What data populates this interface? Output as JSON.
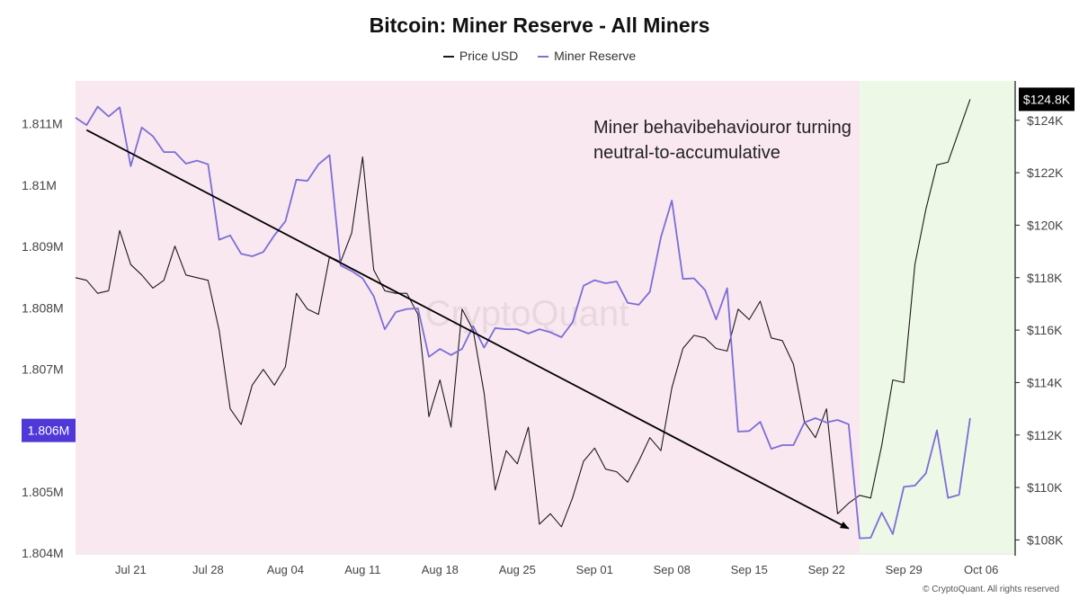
{
  "chart_data": {
    "type": "line",
    "title": "Bitcoin: Miner Reserve - All Miners",
    "legend": [
      "Price USD",
      "Miner Reserve"
    ],
    "legend_position": "top-center",
    "annotation": "Miner behavibehaviouror turning neutral-to-accumulative",
    "watermark": "CryptoQuant",
    "copyright": "© CryptoQuant. All rights reserved",
    "x_ticks": [
      "Jul 21",
      "Jul 28",
      "Aug 04",
      "Aug 11",
      "Aug 18",
      "Aug 25",
      "Sep 01",
      "Sep 08",
      "Sep 15",
      "Sep 22",
      "Sep 29",
      "Oct 06"
    ],
    "y_left_ticks": [
      "1.811M",
      "1.81M",
      "1.809M",
      "1.808M",
      "1.807M",
      "1.806M",
      "1.805M",
      "1.804M"
    ],
    "y_left_values": [
      1.811,
      1.81,
      1.809,
      1.808,
      1.807,
      1.806,
      1.805,
      1.804
    ],
    "y_left_range": [
      1.804,
      1.8117
    ],
    "y_right_ticks": [
      "$124K",
      "$122K",
      "$120K",
      "$118K",
      "$116K",
      "$114K",
      "$112K",
      "$110K",
      "$108K"
    ],
    "y_right_values": [
      124,
      122,
      120,
      118,
      116,
      114,
      112,
      110,
      108
    ],
    "y_right_range": [
      107.5,
      125.5
    ],
    "current_reserve_label": "1.806M",
    "current_reserve_value": 1.806,
    "current_price_label": "$124.8K",
    "current_price_value": 124.8,
    "x_range": [
      "2025-07-16",
      "2025-10-09"
    ],
    "regimes": [
      {
        "start": "2025-07-16",
        "end": "2025-09-25",
        "color": "#fae8f0"
      },
      {
        "start": "2025-09-25",
        "end": "2025-10-09",
        "color": "#eef8e6"
      }
    ],
    "trendline": {
      "from": {
        "date": "2025-07-17",
        "value": 1.8109
      },
      "to": {
        "date": "2025-09-24",
        "value": 1.8044
      }
    },
    "series": [
      {
        "name": "Price USD",
        "axis": "right",
        "color": "#1a1a1a",
        "points": [
          [
            "2025-07-16",
            118.0
          ],
          [
            "2025-07-17",
            117.9
          ],
          [
            "2025-07-18",
            117.4
          ],
          [
            "2025-07-19",
            117.5
          ],
          [
            "2025-07-20",
            119.8
          ],
          [
            "2025-07-21",
            118.5
          ],
          [
            "2025-07-22",
            118.1
          ],
          [
            "2025-07-23",
            117.6
          ],
          [
            "2025-07-24",
            117.9
          ],
          [
            "2025-07-25",
            119.2
          ],
          [
            "2025-07-26",
            118.1
          ],
          [
            "2025-07-27",
            118.0
          ],
          [
            "2025-07-28",
            117.9
          ],
          [
            "2025-07-29",
            116.0
          ],
          [
            "2025-07-30",
            113.0
          ],
          [
            "2025-07-31",
            112.4
          ],
          [
            "2025-08-01",
            113.9
          ],
          [
            "2025-08-02",
            114.5
          ],
          [
            "2025-08-03",
            113.9
          ],
          [
            "2025-08-04",
            114.6
          ],
          [
            "2025-08-05",
            117.4
          ],
          [
            "2025-08-06",
            116.8
          ],
          [
            "2025-08-07",
            116.6
          ],
          [
            "2025-08-08",
            118.8
          ],
          [
            "2025-08-09",
            118.6
          ],
          [
            "2025-08-10",
            119.7
          ],
          [
            "2025-08-11",
            122.6
          ],
          [
            "2025-08-12",
            118.3
          ],
          [
            "2025-08-13",
            117.5
          ],
          [
            "2025-08-14",
            117.4
          ],
          [
            "2025-08-15",
            117.4
          ],
          [
            "2025-08-16",
            116.6
          ],
          [
            "2025-08-17",
            112.7
          ],
          [
            "2025-08-18",
            114.1
          ],
          [
            "2025-08-19",
            112.3
          ],
          [
            "2025-08-20",
            116.8
          ],
          [
            "2025-08-21",
            116.0
          ],
          [
            "2025-08-22",
            113.6
          ],
          [
            "2025-08-23",
            109.9
          ],
          [
            "2025-08-24",
            111.4
          ],
          [
            "2025-08-25",
            110.9
          ],
          [
            "2025-08-26",
            112.3
          ],
          [
            "2025-08-27",
            108.6
          ],
          [
            "2025-08-28",
            109.0
          ],
          [
            "2025-08-29",
            108.5
          ],
          [
            "2025-08-30",
            109.6
          ],
          [
            "2025-08-31",
            111.0
          ],
          [
            "2025-09-01",
            111.5
          ],
          [
            "2025-09-02",
            110.7
          ],
          [
            "2025-09-03",
            110.6
          ],
          [
            "2025-09-04",
            110.2
          ],
          [
            "2025-09-05",
            111.0
          ],
          [
            "2025-09-06",
            111.9
          ],
          [
            "2025-09-07",
            111.4
          ],
          [
            "2025-09-08",
            113.8
          ],
          [
            "2025-09-09",
            115.3
          ],
          [
            "2025-09-10",
            115.8
          ],
          [
            "2025-09-11",
            115.7
          ],
          [
            "2025-09-12",
            115.3
          ],
          [
            "2025-09-13",
            115.2
          ],
          [
            "2025-09-14",
            116.8
          ],
          [
            "2025-09-15",
            116.4
          ],
          [
            "2025-09-16",
            117.1
          ],
          [
            "2025-09-17",
            115.7
          ],
          [
            "2025-09-18",
            115.6
          ],
          [
            "2025-09-19",
            114.7
          ],
          [
            "2025-09-20",
            112.5
          ],
          [
            "2025-09-21",
            111.9
          ],
          [
            "2025-09-22",
            113.0
          ],
          [
            "2025-09-23",
            109.0
          ],
          [
            "2025-09-24",
            109.4
          ],
          [
            "2025-09-25",
            109.7
          ],
          [
            "2025-09-26",
            109.6
          ],
          [
            "2025-09-27",
            111.6
          ],
          [
            "2025-09-28",
            114.1
          ],
          [
            "2025-09-29",
            114.0
          ],
          [
            "2025-09-30",
            118.5
          ],
          [
            "2025-10-01",
            120.6
          ],
          [
            "2025-10-02",
            122.3
          ],
          [
            "2025-10-03",
            122.4
          ],
          [
            "2025-10-04",
            123.6
          ],
          [
            "2025-10-05",
            124.8
          ]
        ]
      },
      {
        "name": "Miner Reserve",
        "axis": "left",
        "color": "#7b6ed6",
        "points": [
          [
            "2025-07-16",
            1.8111
          ],
          [
            "2025-07-17",
            1.81098
          ],
          [
            "2025-07-18",
            1.81128
          ],
          [
            "2025-07-19",
            1.81112
          ],
          [
            "2025-07-20",
            1.81127
          ],
          [
            "2025-07-21",
            1.81031
          ],
          [
            "2025-07-22",
            1.81094
          ],
          [
            "2025-07-23",
            1.8108
          ],
          [
            "2025-07-24",
            1.81054
          ],
          [
            "2025-07-25",
            1.81054
          ],
          [
            "2025-07-26",
            1.81035
          ],
          [
            "2025-07-27",
            1.8104
          ],
          [
            "2025-07-28",
            1.81034
          ],
          [
            "2025-07-29",
            1.80911
          ],
          [
            "2025-07-30",
            1.80918
          ],
          [
            "2025-07-31",
            1.80888
          ],
          [
            "2025-08-01",
            1.80884
          ],
          [
            "2025-08-02",
            1.80891
          ],
          [
            "2025-08-03",
            1.80918
          ],
          [
            "2025-08-04",
            1.80941
          ],
          [
            "2025-08-05",
            1.81009
          ],
          [
            "2025-08-06",
            1.81007
          ],
          [
            "2025-08-07",
            1.81034
          ],
          [
            "2025-08-08",
            1.81049
          ],
          [
            "2025-08-09",
            1.80869
          ],
          [
            "2025-08-10",
            1.8086
          ],
          [
            "2025-08-11",
            1.80848
          ],
          [
            "2025-08-12",
            1.80819
          ],
          [
            "2025-08-13",
            1.80765
          ],
          [
            "2025-08-14",
            1.80793
          ],
          [
            "2025-08-15",
            1.80798
          ],
          [
            "2025-08-16",
            1.80799
          ],
          [
            "2025-08-17",
            1.8072
          ],
          [
            "2025-08-18",
            1.80733
          ],
          [
            "2025-08-19",
            1.80723
          ],
          [
            "2025-08-20",
            1.80733
          ],
          [
            "2025-08-21",
            1.8077
          ],
          [
            "2025-08-22",
            1.80735
          ],
          [
            "2025-08-23",
            1.80767
          ],
          [
            "2025-08-24",
            1.80765
          ],
          [
            "2025-08-25",
            1.80765
          ],
          [
            "2025-08-26",
            1.80758
          ],
          [
            "2025-08-27",
            1.80765
          ],
          [
            "2025-08-28",
            1.8076
          ],
          [
            "2025-08-29",
            1.80752
          ],
          [
            "2025-08-30",
            1.80776
          ],
          [
            "2025-08-31",
            1.80836
          ],
          [
            "2025-09-01",
            1.80845
          ],
          [
            "2025-09-02",
            1.8084
          ],
          [
            "2025-09-03",
            1.80843
          ],
          [
            "2025-09-04",
            1.80808
          ],
          [
            "2025-09-05",
            1.80805
          ],
          [
            "2025-09-06",
            1.80826
          ],
          [
            "2025-09-07",
            1.80915
          ],
          [
            "2025-09-08",
            1.80975
          ],
          [
            "2025-09-09",
            1.80847
          ],
          [
            "2025-09-10",
            1.80848
          ],
          [
            "2025-09-11",
            1.80829
          ],
          [
            "2025-09-12",
            1.80781
          ],
          [
            "2025-09-13",
            1.80832
          ],
          [
            "2025-09-14",
            1.80598
          ],
          [
            "2025-09-15",
            1.80599
          ],
          [
            "2025-09-16",
            1.80614
          ],
          [
            "2025-09-17",
            1.8057
          ],
          [
            "2025-09-18",
            1.80576
          ],
          [
            "2025-09-19",
            1.80576
          ],
          [
            "2025-09-20",
            1.80613
          ],
          [
            "2025-09-21",
            1.8062
          ],
          [
            "2025-09-22",
            1.80613
          ],
          [
            "2025-09-23",
            1.80617
          ],
          [
            "2025-09-24",
            1.8061
          ],
          [
            "2025-09-25",
            1.80424
          ],
          [
            "2025-09-26",
            1.80425
          ],
          [
            "2025-09-27",
            1.80466
          ],
          [
            "2025-09-28",
            1.80431
          ],
          [
            "2025-09-29",
            1.80508
          ],
          [
            "2025-09-30",
            1.8051
          ],
          [
            "2025-10-01",
            1.8053
          ],
          [
            "2025-10-02",
            1.806
          ],
          [
            "2025-10-03",
            1.8049
          ],
          [
            "2025-10-04",
            1.80495
          ],
          [
            "2025-10-05",
            1.8062
          ]
        ]
      }
    ]
  }
}
